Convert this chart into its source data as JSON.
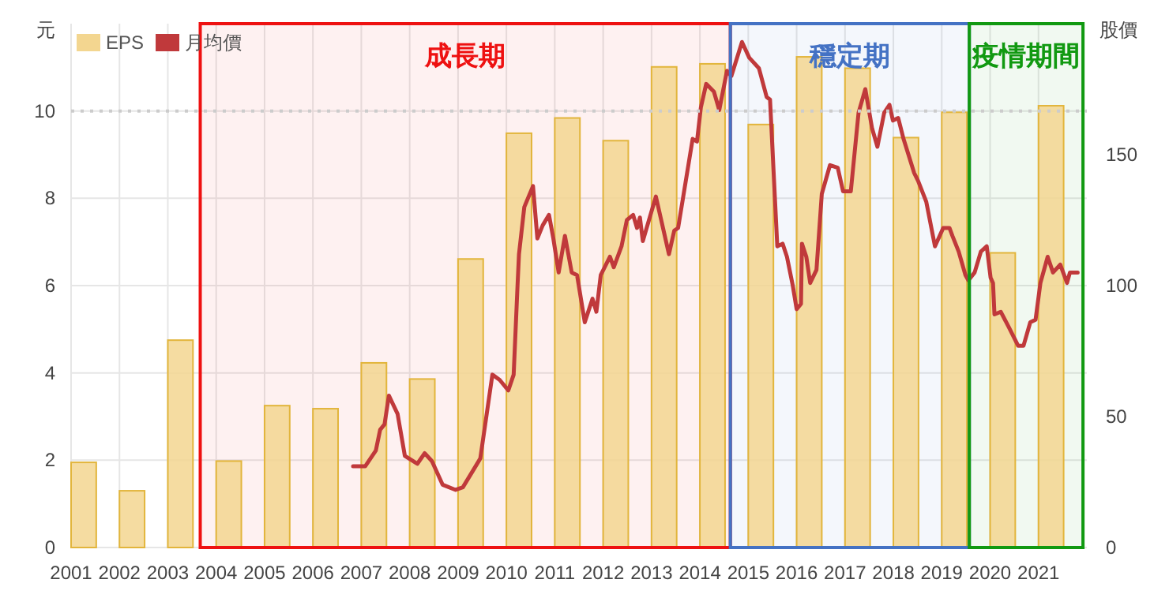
{
  "chart_data": {
    "type": "bar",
    "ylabel": "元",
    "y2label": "股價",
    "xlim": [
      2001,
      2022
    ],
    "xticks": [
      2001,
      2002,
      2003,
      2004,
      2005,
      2006,
      2007,
      2008,
      2009,
      2010,
      2011,
      2012,
      2013,
      2014,
      2015,
      2016,
      2017,
      2018,
      2019,
      2020,
      2021
    ],
    "ylim": [
      0,
      12
    ],
    "yticks": [
      0,
      2,
      4,
      6,
      8,
      10
    ],
    "y2lim": [
      0,
      200
    ],
    "y2ticks": [
      0,
      50,
      100,
      150
    ],
    "grid": true,
    "legend": "top left",
    "series": [
      {
        "name": "EPS",
        "color": "#f3d690",
        "x": [
          2001.26,
          2002.26,
          2003.26,
          2004.26,
          2005.26,
          2006.26,
          2007.26,
          2008.26,
          2009.26,
          2010.26,
          2011.26,
          2012.26,
          2013.26,
          2014.26,
          2015.26,
          2016.26,
          2017.26,
          2018.26,
          2019.26,
          2020.26,
          2021.26
        ],
        "values": [
          1.95,
          1.3,
          4.75,
          1.98,
          3.25,
          3.18,
          4.23,
          3.86,
          6.61,
          9.49,
          9.84,
          9.32,
          11.01,
          11.08,
          9.69,
          11.24,
          10.98,
          9.39,
          9.97,
          6.75,
          10.12
        ]
      },
      {
        "name": "月均價",
        "type": "line",
        "axis": "y2",
        "color": "#c0393b",
        "x": [
          2006.83,
          2007.08,
          2007.3,
          2007.39,
          2007.48,
          2007.57,
          2007.75,
          2007.9,
          2008.16,
          2008.31,
          2008.46,
          2008.68,
          2008.95,
          2009.1,
          2009.33,
          2009.46,
          2009.71,
          2009.86,
          2010.04,
          2010.15,
          2010.23,
          2010.26,
          2010.37,
          2010.55,
          2010.64,
          2010.75,
          2010.88,
          2010.97,
          2011.08,
          2011.21,
          2011.35,
          2011.46,
          2011.62,
          2011.78,
          2011.86,
          2011.95,
          2012.14,
          2012.22,
          2012.38,
          2012.49,
          2012.62,
          2012.7,
          2012.76,
          2012.82,
          2013.09,
          2013.36,
          2013.47,
          2013.55,
          2013.85,
          2013.94,
          2014.02,
          2014.13,
          2014.29,
          2014.4,
          2014.56,
          2014.65,
          2014.87,
          2015.02,
          2015.22,
          2015.38,
          2015.45,
          2015.6,
          2015.71,
          2015.8,
          2015.92,
          2016.0,
          2016.09,
          2016.11,
          2016.2,
          2016.28,
          2016.41,
          2016.52,
          2016.69,
          2016.85,
          2016.96,
          2017.12,
          2017.28,
          2017.42,
          2017.56,
          2017.67,
          2017.81,
          2017.92,
          2017.99,
          2018.1,
          2018.21,
          2018.43,
          2018.51,
          2018.68,
          2018.86,
          2019.03,
          2019.16,
          2019.22,
          2019.35,
          2019.49,
          2019.55,
          2019.68,
          2019.81,
          2019.93,
          2020.01,
          2020.06,
          2020.09,
          2020.22,
          2020.39,
          2020.58,
          2020.69,
          2020.83,
          2020.94,
          2021.04,
          2021.19,
          2021.3,
          2021.45,
          2021.59,
          2021.65,
          2021.81
        ],
        "values": [
          31,
          31,
          37,
          45,
          47,
          58,
          51,
          35,
          32,
          36,
          33,
          24,
          22,
          23,
          30,
          34,
          66,
          64,
          60,
          66,
          100,
          112,
          130,
          138,
          118,
          123,
          127,
          118,
          105,
          119,
          105,
          104,
          86,
          95,
          90,
          104,
          111,
          107,
          115,
          125,
          127,
          122,
          126,
          117,
          134,
          112,
          121,
          122,
          156,
          155,
          168,
          177,
          174,
          167,
          182,
          180,
          193,
          187,
          183,
          172,
          171,
          115,
          116,
          111,
          100,
          91,
          93,
          116,
          111,
          101,
          106,
          135,
          146,
          145,
          136,
          136,
          166,
          175,
          160,
          153,
          166,
          169,
          163,
          164,
          156,
          143,
          140,
          132,
          115,
          122,
          122,
          119,
          113,
          104,
          102,
          105,
          113,
          115,
          103,
          101,
          89,
          90,
          84,
          77,
          77,
          86,
          87,
          101,
          111,
          105,
          108,
          101,
          105,
          105
        ]
      }
    ],
    "ref_lines": [
      {
        "axis": "y",
        "value": 10,
        "color": "#cccccc",
        "line_style": "dotted"
      }
    ],
    "bands": [
      {
        "axis": "x",
        "from": 2003.67,
        "to": 2014.63,
        "label": "成長期",
        "color": "#ee1111"
      },
      {
        "axis": "x",
        "from": 2014.63,
        "to": 2019.57,
        "label": "穩定期",
        "color": "#4472c4"
      },
      {
        "axis": "x",
        "from": 2019.57,
        "to": 2021.92,
        "label": "疫情期間",
        "color": "#119911"
      }
    ]
  }
}
